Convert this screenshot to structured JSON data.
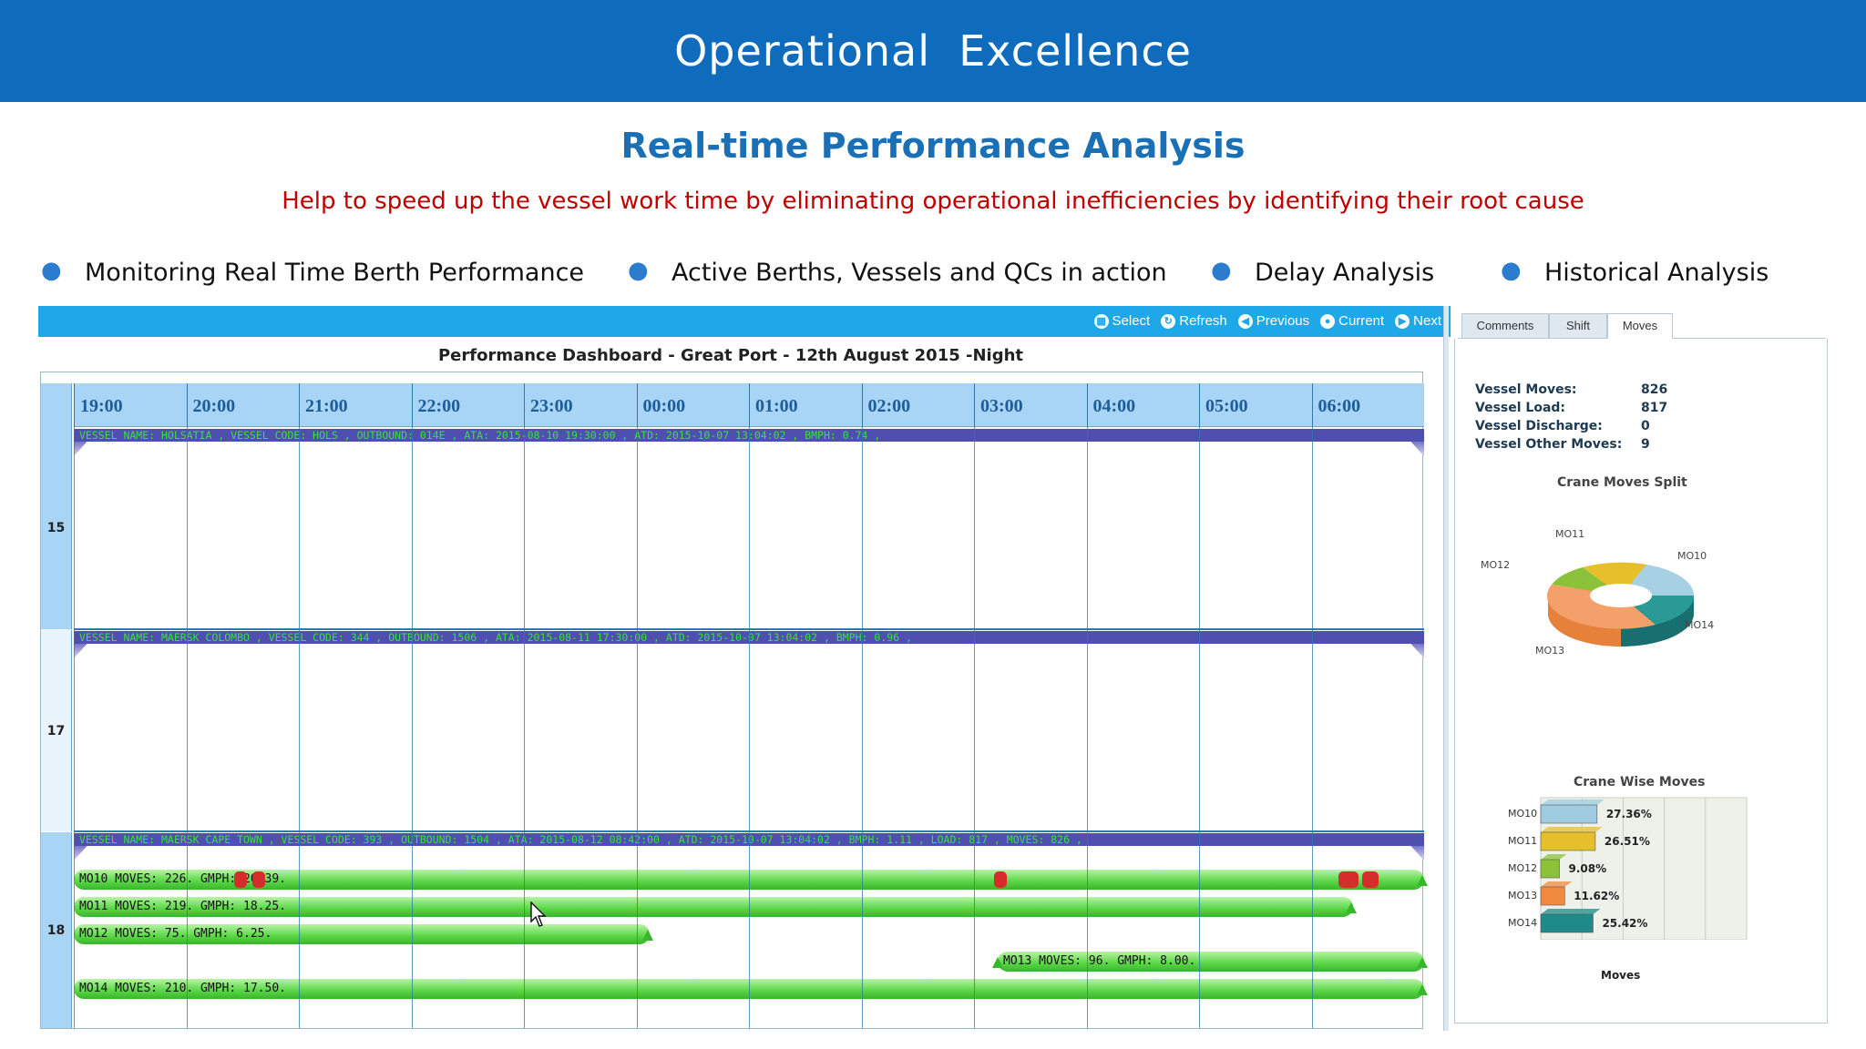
{
  "slide": {
    "banner_title": "Operational  Excellence",
    "subtitle": "Real-time Performance Analysis",
    "tagline": "Help to speed up the vessel  work time by eliminating operational inefficiencies by identifying their root cause",
    "bullets": [
      "Monitoring Real Time Berth Performance",
      "Active Berths, Vessels and QCs in action",
      "Delay Analysis",
      "Historical Analysis"
    ]
  },
  "toolbar": {
    "select": "Select",
    "refresh": "Refresh",
    "previous": "Previous",
    "current": "Current",
    "next": "Next"
  },
  "dashboard": {
    "title": "Performance Dashboard - Great Port - 12th August 2015 -Night",
    "hours": [
      "19:00",
      "20:00",
      "21:00",
      "22:00",
      "23:00",
      "00:00",
      "01:00",
      "02:00",
      "03:00",
      "04:00",
      "05:00",
      "06:00"
    ],
    "berths": [
      {
        "id": "15",
        "vessel": "VESSEL NAME: HOLSATIA , VESSEL CODE: HOLS , OUTBOUND: 014E , ATA: 2015-08-10 19:30:00 , ATD: 2015-10-07 13:04:02 , BMPH: 0.74 ,"
      },
      {
        "id": "17",
        "vessel": "VESSEL NAME: MAERSK COLOMBO , VESSEL CODE: 344 , OUTBOUND: 1506 , ATA: 2015-08-11 17:30:00 , ATD: 2015-10-07 13:04:02 , BMPH: 0.96 ,"
      },
      {
        "id": "18",
        "vessel": "VESSEL NAME: MAERSK CAPE TOWN , VESSEL CODE: 393 , OUTBOUND: 1504 , ATA: 2015-08-12 08:42:00 , ATD: 2015-10-07 13:04:02 , BMPH: 1.11 , LOAD: 817 , MOVES: 826 ,"
      }
    ],
    "cranes": [
      {
        "label": "MO10 MOVES: 226. GMPH: 20.39."
      },
      {
        "label": "MO11 MOVES: 219. GMPH: 18.25."
      },
      {
        "label": "MO12 MOVES: 75. GMPH: 6.25."
      },
      {
        "label": "MO13 MOVES: 96. GMPH: 8.00."
      },
      {
        "label": "MO14 MOVES: 210. GMPH: 17.50."
      }
    ]
  },
  "side_panel": {
    "tabs": [
      "Comments",
      "Shift",
      "Moves"
    ],
    "active_tab": "Moves",
    "stats": [
      {
        "label": "Vessel Moves:",
        "value": "826"
      },
      {
        "label": "Vessel Load:",
        "value": "817"
      },
      {
        "label": "Vessel Discharge:",
        "value": "0"
      },
      {
        "label": "Vessel Other Moves:",
        "value": "9"
      }
    ]
  },
  "chart_data": [
    {
      "type": "pie",
      "title": "Crane Moves Split",
      "categories": [
        "MO10",
        "MO11",
        "MO12",
        "MO13",
        "MO14"
      ],
      "colors": [
        "#9ecbe0",
        "#e6c02a",
        "#8cc23a",
        "#f08a3e",
        "#1e8a8a"
      ]
    },
    {
      "type": "bar",
      "orientation": "horizontal",
      "title": "Crane Wise Moves",
      "xlabel": "Moves",
      "categories": [
        "MO10",
        "MO11",
        "MO12",
        "MO13",
        "MO14"
      ],
      "values": [
        27.36,
        26.51,
        9.08,
        11.62,
        25.42
      ],
      "value_labels": [
        "27.36%",
        "26.51%",
        "9.08%",
        "11.62%",
        "25.42%"
      ],
      "xticks": [
        "0%",
        "20%",
        "40%",
        "60%",
        "80%",
        "100%"
      ],
      "xlim": [
        0,
        100
      ],
      "colors": [
        "#9ecbe0",
        "#e6c02a",
        "#8cc23a",
        "#f08a3e",
        "#1e8a8a"
      ]
    }
  ]
}
